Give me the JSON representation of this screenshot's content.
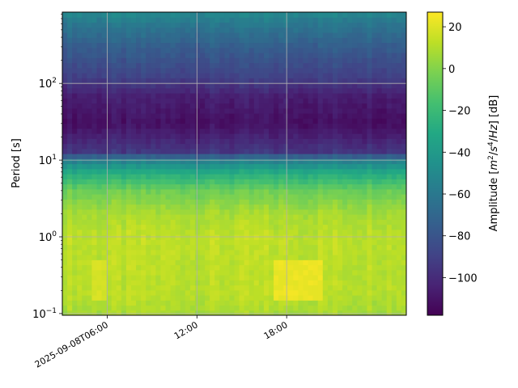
{
  "chart_data": {
    "type": "heatmap",
    "title": "",
    "xlabel": "",
    "ylabel": "Period [s]",
    "y_scale": "log",
    "ylim": [
      0.095,
      850
    ],
    "y_tick_values": [
      0.1,
      1,
      10,
      100
    ],
    "y_tick_base": "10",
    "y_tick_exponents": [
      "−1",
      "0",
      "1",
      "2"
    ],
    "xlim_hours": [
      3.0,
      26.0
    ],
    "x_ticks": [
      {
        "hour": 6,
        "label": "2025-09-08T06:00"
      },
      {
        "hour": 12,
        "label": "12:00"
      },
      {
        "hour": 18,
        "label": "18:00"
      }
    ],
    "grid": true,
    "colormap": "viridis",
    "colorbar": {
      "label": "Amplitude [m²/s⁴/Hz] [dB]",
      "label_parts": [
        "Amplitude [",
        "m",
        "2",
        "/",
        "s",
        "4",
        "/",
        "Hz",
        "] [dB]"
      ],
      "range": [
        -118,
        27
      ],
      "ticks": [
        20,
        0,
        -20,
        -40,
        -60,
        -80,
        -100
      ],
      "tick_labels": [
        "20",
        "0",
        "−20",
        "−40",
        "−60",
        "−80",
        "−100"
      ]
    },
    "amplitude_profile_by_period": [
      {
        "period": 0.1,
        "db": 8
      },
      {
        "period": 0.2,
        "db": 12
      },
      {
        "period": 0.5,
        "db": 12
      },
      {
        "period": 1,
        "db": 13
      },
      {
        "period": 2,
        "db": 8
      },
      {
        "period": 4,
        "db": -5
      },
      {
        "period": 7,
        "db": -30
      },
      {
        "period": 10,
        "db": -55
      },
      {
        "period": 13,
        "db": -95
      },
      {
        "period": 30,
        "db": -112
      },
      {
        "period": 70,
        "db": -105
      },
      {
        "period": 120,
        "db": -90
      },
      {
        "period": 300,
        "db": -75
      },
      {
        "period": 600,
        "db": -60
      },
      {
        "period": 850,
        "db": -50
      }
    ],
    "hot_regions": [
      {
        "x_start_hour": 17.0,
        "x_end_hour": 20.5,
        "period_min": 0.15,
        "period_max": 0.5,
        "db": 25
      },
      {
        "x_start_hour": 5.0,
        "x_end_hour": 6.0,
        "period_min": 0.15,
        "period_max": 0.5,
        "db": 20
      }
    ]
  }
}
